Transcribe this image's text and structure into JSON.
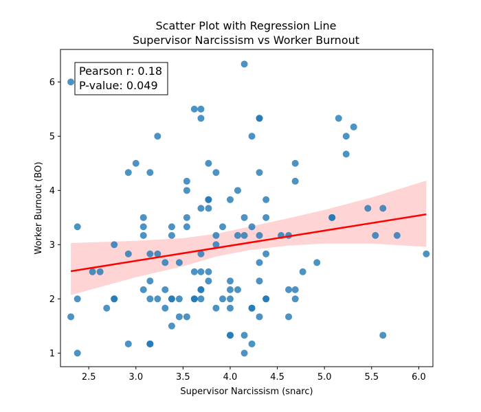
{
  "chart_data": {
    "type": "scatter",
    "title_line1": "Scatter Plot with Regression Line",
    "title_line2": "Supervisor Narcissism vs Worker Burnout",
    "xlabel": "Supervisor Narcissism (snarc)",
    "ylabel": "Worker Burnout (BO)",
    "xlim": [
      2.2,
      6.15
    ],
    "ylim": [
      0.75,
      6.6
    ],
    "x_ticks": [
      "2.5",
      "3.0",
      "3.5",
      "4.0",
      "4.5",
      "5.0",
      "5.5",
      "6.0"
    ],
    "x_tick_values": [
      2.5,
      3.0,
      3.5,
      4.0,
      4.5,
      5.0,
      5.5,
      6.0
    ],
    "y_ticks": [
      "1",
      "2",
      "3",
      "4",
      "5",
      "6"
    ],
    "y_tick_values": [
      1,
      2,
      3,
      4,
      5,
      6
    ],
    "stats": {
      "pearson_label": "Pearson r: 0.18",
      "pvalue_label": "P-value: 0.049"
    },
    "colors": {
      "points": "#1f77b4",
      "regression_line": "#ff0000",
      "confidence_band": "#ffcccc"
    },
    "regression": {
      "x": [
        2.31,
        6.08
      ],
      "y": [
        2.51,
        3.56
      ]
    },
    "confidence_band": {
      "x": [
        2.31,
        3.0,
        3.5,
        3.85,
        4.2,
        4.6,
        5.0,
        5.5,
        6.08
      ],
      "upper": [
        3.03,
        3.07,
        3.12,
        3.2,
        3.33,
        3.48,
        3.64,
        3.87,
        4.18
      ],
      "lower": [
        2.07,
        2.4,
        2.6,
        2.78,
        2.9,
        2.98,
        3.02,
        3.02,
        2.96
      ]
    },
    "points": [
      {
        "x": 2.31,
        "y": 6.0
      },
      {
        "x": 2.31,
        "y": 1.67
      },
      {
        "x": 2.38,
        "y": 3.33
      },
      {
        "x": 2.38,
        "y": 2.0
      },
      {
        "x": 2.38,
        "y": 1.0
      },
      {
        "x": 2.54,
        "y": 2.5
      },
      {
        "x": 2.62,
        "y": 2.5
      },
      {
        "x": 2.69,
        "y": 1.83
      },
      {
        "x": 2.77,
        "y": 3.0
      },
      {
        "x": 2.77,
        "y": 2.0
      },
      {
        "x": 2.77,
        "y": 2.0
      },
      {
        "x": 2.92,
        "y": 4.33
      },
      {
        "x": 2.92,
        "y": 2.83
      },
      {
        "x": 2.92,
        "y": 1.17
      },
      {
        "x": 3.0,
        "y": 4.5
      },
      {
        "x": 3.08,
        "y": 3.5
      },
      {
        "x": 3.08,
        "y": 3.33
      },
      {
        "x": 3.08,
        "y": 3.17
      },
      {
        "x": 3.08,
        "y": 2.17
      },
      {
        "x": 3.15,
        "y": 4.33
      },
      {
        "x": 3.15,
        "y": 2.83
      },
      {
        "x": 3.15,
        "y": 2.33
      },
      {
        "x": 3.15,
        "y": 2.0
      },
      {
        "x": 3.15,
        "y": 1.17
      },
      {
        "x": 3.15,
        "y": 1.17
      },
      {
        "x": 3.23,
        "y": 5.0
      },
      {
        "x": 3.23,
        "y": 2.83
      },
      {
        "x": 3.23,
        "y": 2.0
      },
      {
        "x": 3.31,
        "y": 2.67
      },
      {
        "x": 3.31,
        "y": 2.17
      },
      {
        "x": 3.31,
        "y": 1.83
      },
      {
        "x": 3.38,
        "y": 3.33
      },
      {
        "x": 3.38,
        "y": 3.17
      },
      {
        "x": 3.38,
        "y": 2.0
      },
      {
        "x": 3.38,
        "y": 2.0
      },
      {
        "x": 3.38,
        "y": 1.5
      },
      {
        "x": 3.46,
        "y": 2.67
      },
      {
        "x": 3.46,
        "y": 2.0
      },
      {
        "x": 3.46,
        "y": 1.67
      },
      {
        "x": 3.54,
        "y": 4.17
      },
      {
        "x": 3.54,
        "y": 4.0
      },
      {
        "x": 3.54,
        "y": 3.5
      },
      {
        "x": 3.54,
        "y": 3.33
      },
      {
        "x": 3.54,
        "y": 1.67
      },
      {
        "x": 3.62,
        "y": 5.5
      },
      {
        "x": 3.62,
        "y": 2.5
      },
      {
        "x": 3.62,
        "y": 2.0
      },
      {
        "x": 3.62,
        "y": 2.0
      },
      {
        "x": 3.69,
        "y": 5.5
      },
      {
        "x": 3.69,
        "y": 5.33
      },
      {
        "x": 3.69,
        "y": 3.67
      },
      {
        "x": 3.69,
        "y": 2.83
      },
      {
        "x": 3.69,
        "y": 2.5
      },
      {
        "x": 3.69,
        "y": 2.17
      },
      {
        "x": 3.69,
        "y": 2.17
      },
      {
        "x": 3.69,
        "y": 2.0
      },
      {
        "x": 3.77,
        "y": 4.5
      },
      {
        "x": 3.77,
        "y": 3.83
      },
      {
        "x": 3.77,
        "y": 3.83
      },
      {
        "x": 3.77,
        "y": 3.67
      },
      {
        "x": 3.77,
        "y": 2.5
      },
      {
        "x": 3.77,
        "y": 2.33
      },
      {
        "x": 3.85,
        "y": 4.33
      },
      {
        "x": 3.85,
        "y": 3.17
      },
      {
        "x": 3.85,
        "y": 3.0
      },
      {
        "x": 3.85,
        "y": 1.83
      },
      {
        "x": 3.92,
        "y": 3.33
      },
      {
        "x": 3.92,
        "y": 2.0
      },
      {
        "x": 4.0,
        "y": 3.83
      },
      {
        "x": 4.0,
        "y": 2.33
      },
      {
        "x": 4.0,
        "y": 2.17
      },
      {
        "x": 4.0,
        "y": 2.0
      },
      {
        "x": 4.0,
        "y": 1.83
      },
      {
        "x": 4.0,
        "y": 1.33
      },
      {
        "x": 4.0,
        "y": 1.33
      },
      {
        "x": 4.08,
        "y": 4.0
      },
      {
        "x": 4.08,
        "y": 3.17
      },
      {
        "x": 4.08,
        "y": 2.17
      },
      {
        "x": 4.15,
        "y": 6.33
      },
      {
        "x": 4.15,
        "y": 3.5
      },
      {
        "x": 4.15,
        "y": 3.17
      },
      {
        "x": 4.15,
        "y": 1.33
      },
      {
        "x": 4.15,
        "y": 1.0
      },
      {
        "x": 4.23,
        "y": 5.0
      },
      {
        "x": 4.23,
        "y": 3.33
      },
      {
        "x": 4.23,
        "y": 1.83
      },
      {
        "x": 4.23,
        "y": 1.83
      },
      {
        "x": 4.23,
        "y": 1.17
      },
      {
        "x": 4.31,
        "y": 5.33
      },
      {
        "x": 4.31,
        "y": 5.33
      },
      {
        "x": 4.31,
        "y": 4.33
      },
      {
        "x": 4.31,
        "y": 3.17
      },
      {
        "x": 4.31,
        "y": 2.67
      },
      {
        "x": 4.31,
        "y": 2.33
      },
      {
        "x": 4.31,
        "y": 1.67
      },
      {
        "x": 4.38,
        "y": 3.83
      },
      {
        "x": 4.38,
        "y": 3.5
      },
      {
        "x": 4.38,
        "y": 2.83
      },
      {
        "x": 4.38,
        "y": 2.0
      },
      {
        "x": 4.38,
        "y": 2.0
      },
      {
        "x": 4.54,
        "y": 3.17
      },
      {
        "x": 4.62,
        "y": 3.17
      },
      {
        "x": 4.62,
        "y": 2.17
      },
      {
        "x": 4.62,
        "y": 1.67
      },
      {
        "x": 4.69,
        "y": 4.5
      },
      {
        "x": 4.69,
        "y": 4.17
      },
      {
        "x": 4.69,
        "y": 2.17
      },
      {
        "x": 4.69,
        "y": 2.0
      },
      {
        "x": 4.77,
        "y": 2.5
      },
      {
        "x": 4.92,
        "y": 2.67
      },
      {
        "x": 5.08,
        "y": 3.5
      },
      {
        "x": 5.08,
        "y": 3.5
      },
      {
        "x": 5.15,
        "y": 5.33
      },
      {
        "x": 5.23,
        "y": 5.0
      },
      {
        "x": 5.23,
        "y": 4.67
      },
      {
        "x": 5.31,
        "y": 5.17
      },
      {
        "x": 5.46,
        "y": 3.67
      },
      {
        "x": 5.54,
        "y": 3.17
      },
      {
        "x": 5.62,
        "y": 3.67
      },
      {
        "x": 5.62,
        "y": 1.33
      },
      {
        "x": 5.77,
        "y": 3.17
      },
      {
        "x": 6.08,
        "y": 2.83
      }
    ]
  }
}
